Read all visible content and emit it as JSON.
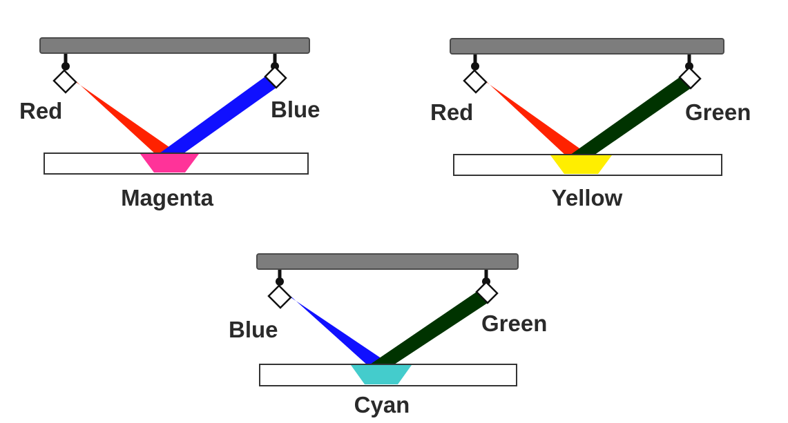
{
  "colors": {
    "red": "#ff2200",
    "blue": "#1010ff",
    "green": "#003300",
    "magenta": "#ff3399",
    "yellow": "#ffee00",
    "cyan": "#44cccc",
    "mount_bar": "#7d7d7d"
  },
  "panels": [
    {
      "id": "magenta",
      "left_beam": {
        "label": "Red",
        "color": "#ff2200"
      },
      "right_beam": {
        "label": "Blue",
        "color": "#1010ff"
      },
      "result": {
        "label": "Magenta",
        "color": "#ff3399"
      }
    },
    {
      "id": "yellow",
      "left_beam": {
        "label": "Red",
        "color": "#ff2200"
      },
      "right_beam": {
        "label": "Green",
        "color": "#003300"
      },
      "result": {
        "label": "Yellow",
        "color": "#ffee00"
      }
    },
    {
      "id": "cyan",
      "left_beam": {
        "label": "Blue",
        "color": "#1010ff"
      },
      "right_beam": {
        "label": "Green",
        "color": "#003300"
      },
      "result": {
        "label": "Cyan",
        "color": "#44cccc"
      }
    }
  ]
}
